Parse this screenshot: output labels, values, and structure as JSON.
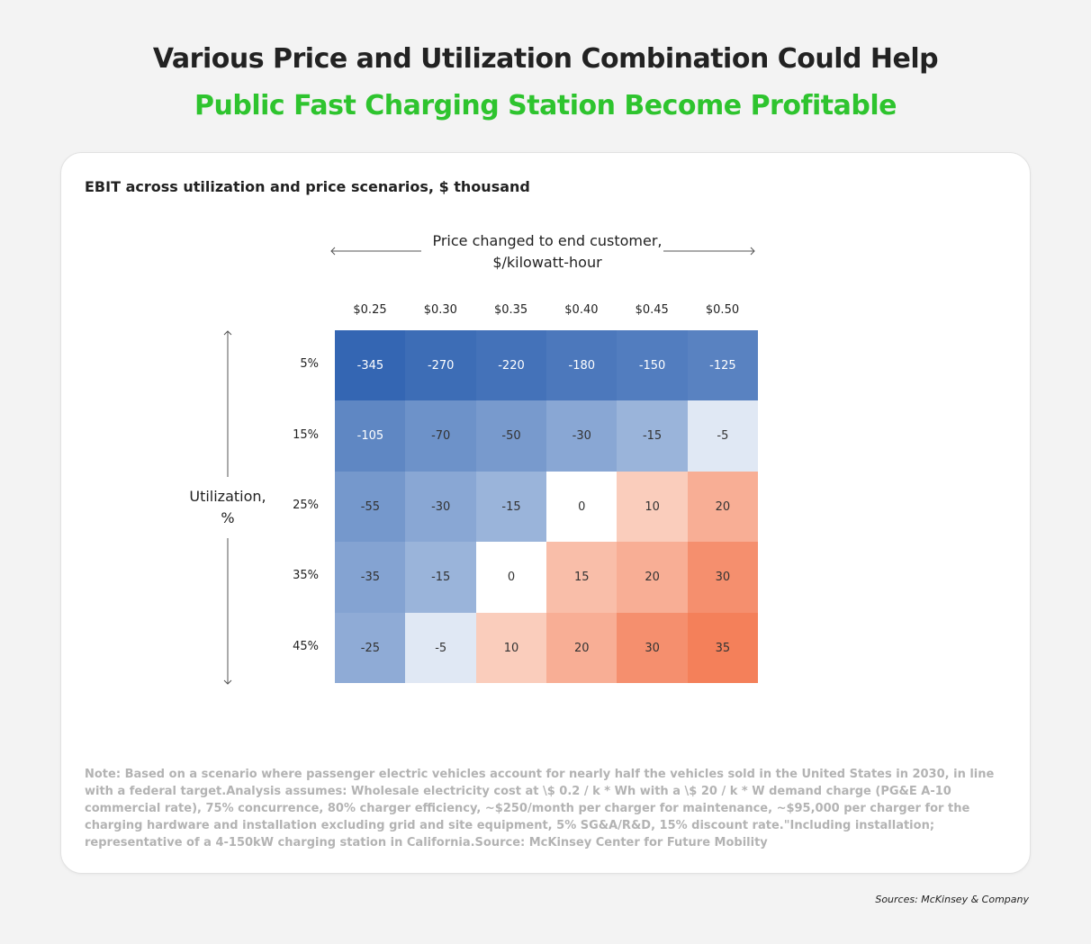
{
  "header": {
    "title_line1": "Various Price and Utilization Combination Could Help",
    "title_line2": "Public Fast Charging Station Become Profitable"
  },
  "colors": {
    "title_dark": "#222222",
    "title_green": "#2ec42e",
    "negative_max": "#3466b3",
    "neutral": "#ffffff",
    "positive_max": "#f4805a"
  },
  "chart_data": {
    "type": "heatmap",
    "title": "EBIT across utilization and price scenarios, $ thousand",
    "xlabel": "Price changed to end customer, $/kilowatt-hour",
    "xlabel_line1": "Price changed to end customer,",
    "xlabel_line2": "$/kilowatt-hour",
    "ylabel": "Utilization, %",
    "ylabel_line1": "Utilization,",
    "ylabel_line2": "%",
    "x_categories": [
      "$0.25",
      "$0.30",
      "$0.35",
      "$0.40",
      "$0.45",
      "$0.50"
    ],
    "y_categories": [
      "5%",
      "15%",
      "25%",
      "35%",
      "45%"
    ],
    "values": [
      [
        -345,
        -270,
        -220,
        -180,
        -150,
        -125
      ],
      [
        -105,
        -70,
        -50,
        -30,
        -15,
        -5
      ],
      [
        -55,
        -30,
        -15,
        0,
        10,
        20
      ],
      [
        -35,
        -15,
        0,
        15,
        20,
        30
      ],
      [
        -25,
        -5,
        10,
        20,
        30,
        35
      ]
    ],
    "color_scale": "diverging blue (negative) – white (zero) – orange (positive)"
  },
  "footer": {
    "note": "Note: Based on a scenario where passenger electric vehicles account for nearly half the vehicles sold in the United States in 2030, in line with a federal target.Analysis assumes: Wholesale electricity cost at \\$ 0.2 / k * Wh with a \\$ 20 / k * W demand charge (PG&E A-10 commercial rate), 75% concurrence, 80% charger efficiency, ~$250/month per charger for maintenance, ~$95,000 per charger for the charging hardware and installation excluding grid and site equipment, 5% SG&A/R&D, 15% discount rate.\"Including installation; representative of a 4-150kW charging station in California.Source: McKinsey Center for Future Mobility",
    "source": "Sources: McKinsey & Company"
  }
}
